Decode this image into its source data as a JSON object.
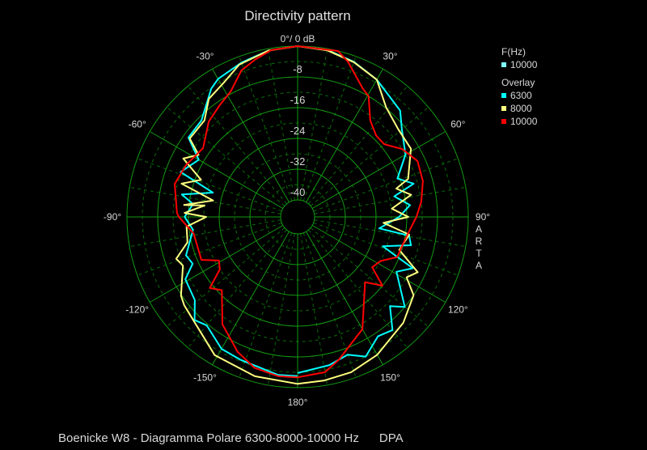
{
  "chart_data": {
    "type": "polar",
    "title": "Directivity pattern",
    "radial_unit_label": "0°/ 0 dB",
    "radial_range_db": [
      -40,
      0
    ],
    "radial_ticks": [
      "-8",
      "-16",
      "-24",
      "-32",
      "-40"
    ],
    "radial_tick_values": [
      -8,
      -16,
      -24,
      -32,
      -40
    ],
    "angle_ticks": [
      {
        "angle": 30,
        "label": "30°"
      },
      {
        "angle": 60,
        "label": "60°"
      },
      {
        "angle": 90,
        "label": "90°"
      },
      {
        "angle": 120,
        "label": "120°"
      },
      {
        "angle": 150,
        "label": "150°"
      },
      {
        "angle": 180,
        "label": "180°"
      },
      {
        "angle": -150,
        "label": "-150°"
      },
      {
        "angle": -120,
        "label": "-120°"
      },
      {
        "angle": -90,
        "label": "-90°"
      },
      {
        "angle": -60,
        "label": "-60°"
      },
      {
        "angle": -30,
        "label": "-30°"
      }
    ],
    "grid": true,
    "legend_placement": "top-right",
    "legend": {
      "header": "F(Hz)",
      "current": {
        "label": "10000",
        "color": "#80ffff"
      },
      "overlay_label": "Overlay"
    },
    "series": [
      {
        "name": "6300",
        "color": "#00ffff",
        "points": [
          [
            -180,
            -3
          ],
          [
            -173,
            -3
          ],
          [
            -158,
            -4.4
          ],
          [
            -150,
            -4.8
          ],
          [
            -140,
            -7.6
          ],
          [
            -135,
            -6.5
          ],
          [
            -129,
            -10
          ],
          [
            -119,
            -11
          ],
          [
            -114,
            -14.5
          ],
          [
            -109,
            -13.7
          ],
          [
            -97,
            -17
          ],
          [
            -90,
            -15
          ],
          [
            -83,
            -17
          ],
          [
            -79,
            -13.7
          ],
          [
            -74,
            -21.5
          ],
          [
            -69,
            -11.8
          ],
          [
            -60,
            -14.7
          ],
          [
            -54,
            -9.3
          ],
          [
            -45,
            -9
          ],
          [
            -34,
            -4.2
          ],
          [
            -30,
            -3
          ],
          [
            -20,
            -1.7
          ],
          [
            -10,
            -0.5
          ],
          [
            0,
            0
          ],
          [
            10,
            -0.3
          ],
          [
            20,
            -1.5
          ],
          [
            30,
            -3.2
          ],
          [
            44,
            -6
          ],
          [
            50,
            -9
          ],
          [
            60,
            -12
          ],
          [
            69,
            -16.6
          ],
          [
            74,
            -13
          ],
          [
            78,
            -18.7
          ],
          [
            84,
            -15
          ],
          [
            90,
            -18
          ],
          [
            98,
            -23
          ],
          [
            99.5,
            -15
          ],
          [
            104,
            -14
          ],
          [
            109,
            -21
          ],
          [
            114,
            -11.6
          ],
          [
            119,
            -15
          ],
          [
            130,
            -8
          ],
          [
            134,
            -11
          ],
          [
            140,
            -6
          ],
          [
            146,
            -7
          ],
          [
            154,
            -4
          ],
          [
            160,
            -6.3
          ],
          [
            168,
            -5
          ],
          [
            180,
            -3.8
          ]
        ]
      },
      {
        "name": "8000",
        "color": "#ffff80",
        "points": [
          [
            -180,
            -1
          ],
          [
            -165,
            -1.5
          ],
          [
            -149,
            -2.5
          ],
          [
            -128,
            -7
          ],
          [
            -124,
            -7.8
          ],
          [
            -113,
            -12
          ],
          [
            -109,
            -11
          ],
          [
            -103,
            -15
          ],
          [
            -95,
            -15.4
          ],
          [
            -90,
            -20.6
          ],
          [
            -88,
            -15
          ],
          [
            -83,
            -20
          ],
          [
            -84,
            -14.7
          ],
          [
            -79,
            -22
          ],
          [
            -74,
            -13
          ],
          [
            -69,
            -17.5
          ],
          [
            -63,
            -11
          ],
          [
            -58,
            -14
          ],
          [
            -54,
            -9.7
          ],
          [
            -44,
            -9.5
          ],
          [
            -37,
            -6
          ],
          [
            -29,
            -4.6
          ],
          [
            -21,
            -2
          ],
          [
            -10,
            -0.5
          ],
          [
            0,
            0
          ],
          [
            10,
            -0.4
          ],
          [
            20,
            -1.6
          ],
          [
            30,
            -3.2
          ],
          [
            39,
            -7.8
          ],
          [
            49,
            -9.7
          ],
          [
            59,
            -10
          ],
          [
            71,
            -14
          ],
          [
            74,
            -17.7
          ],
          [
            79,
            -14.3
          ],
          [
            85,
            -19.8
          ],
          [
            90,
            -15.6
          ],
          [
            94,
            -22
          ],
          [
            99,
            -15
          ],
          [
            108,
            -16.6
          ],
          [
            114.7,
            -10
          ],
          [
            119,
            -12
          ],
          [
            124,
            -8
          ],
          [
            135,
            -5.5
          ],
          [
            150,
            -3
          ],
          [
            161,
            -1.7
          ],
          [
            170.7,
            -1.3
          ],
          [
            180,
            -1
          ]
        ]
      },
      {
        "name": "10000",
        "color": "#ff0000",
        "points": [
          [
            -180,
            -2.7
          ],
          [
            -173,
            -2.7
          ],
          [
            -164,
            -3.6
          ],
          [
            -156,
            -6
          ],
          [
            -145,
            -10.3
          ],
          [
            -134,
            -17
          ],
          [
            -129,
            -15
          ],
          [
            -124,
            -20
          ],
          [
            -119,
            -21
          ],
          [
            -114,
            -17
          ],
          [
            -99,
            -17
          ],
          [
            -90,
            -13.5
          ],
          [
            -88,
            -13
          ],
          [
            -75,
            -11.3
          ],
          [
            -65,
            -12.4
          ],
          [
            -54,
            -14
          ],
          [
            -43,
            -10.5
          ],
          [
            -35,
            -9
          ],
          [
            -28,
            -7.4
          ],
          [
            -21,
            -3.6
          ],
          [
            -15,
            -2
          ],
          [
            -9,
            -0.5
          ],
          [
            0,
            0
          ],
          [
            13.7,
            0
          ],
          [
            18,
            -2
          ],
          [
            27,
            -7
          ],
          [
            30.5,
            -8
          ],
          [
            37,
            -13
          ],
          [
            44,
            -15
          ],
          [
            50,
            -15
          ],
          [
            57,
            -12
          ],
          [
            65,
            -10
          ],
          [
            74,
            -10.5
          ],
          [
            83,
            -12
          ],
          [
            90,
            -13.5
          ],
          [
            100,
            -15.6
          ],
          [
            112,
            -16.5
          ],
          [
            118,
            -20
          ],
          [
            124,
            -21
          ],
          [
            129,
            -16
          ],
          [
            134,
            -20
          ],
          [
            150,
            -10.7
          ],
          [
            156,
            -9
          ],
          [
            164,
            -5.7
          ],
          [
            170,
            -3.4
          ],
          [
            180,
            -2.7
          ]
        ]
      }
    ]
  },
  "side_label": [
    "A",
    "R",
    "T",
    "A"
  ],
  "footer": "Boenicke W8 - Diagramma Polare 6300-8000-10000 Hz      DPA"
}
